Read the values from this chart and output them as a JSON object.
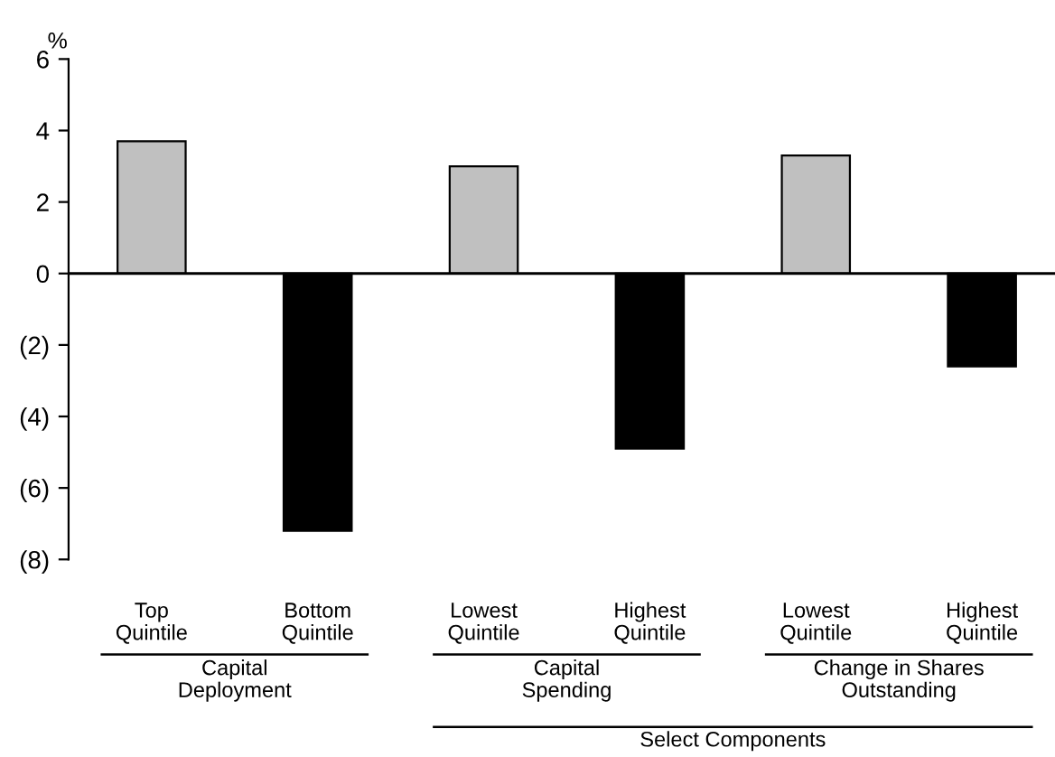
{
  "chart_data": {
    "type": "bar",
    "categories": [
      "Top\nQuintile",
      "Bottom\nQuintile",
      "Lowest\nQuintile",
      "Highest\nQuintile",
      "Lowest\nQuintile",
      "Highest\nQuintile"
    ],
    "values": [
      3.7,
      -7.2,
      3.0,
      -4.9,
      3.3,
      -2.6
    ],
    "colors": [
      "#c0c0c0",
      "#000000",
      "#c0c0c0",
      "#000000",
      "#c0c0c0",
      "#000000"
    ],
    "ylabel": "%",
    "ylim": [
      -8,
      6
    ],
    "yticks": [
      {
        "value": -8,
        "label": "(8)"
      },
      {
        "value": -6,
        "label": "(6)"
      },
      {
        "value": -4,
        "label": "(4)"
      },
      {
        "value": -2,
        "label": "(2)"
      },
      0,
      2,
      4,
      6
    ],
    "ref_lines": [
      {
        "axis": "y",
        "value": 0,
        "color": "#000000"
      }
    ],
    "annotations": [
      "Capital\nDeployment",
      "Capital\nSpending",
      "Change in Shares\nOutstanding",
      "Select Components"
    ],
    "grid": false,
    "legend": false
  }
}
